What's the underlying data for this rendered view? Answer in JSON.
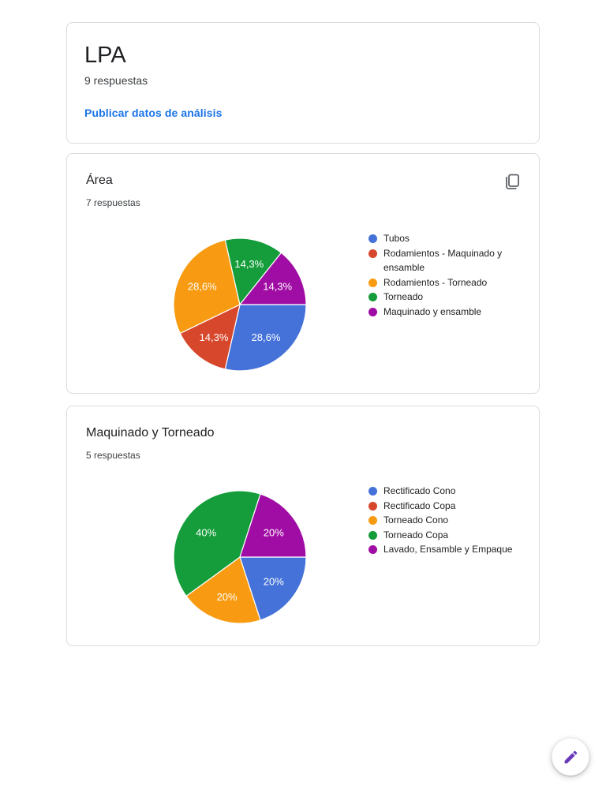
{
  "header_card": {
    "title": "LPA",
    "responses": "9 respuestas",
    "publish_link": "Publicar datos de análisis"
  },
  "colors": {
    "blue": "#4472d8",
    "red": "#d7472c",
    "orange": "#f89b12",
    "green": "#149d3a",
    "purple": "#a00da4",
    "link": "#1a73e8",
    "fab_pencil": "#673ab7",
    "icon_gray": "#5f6368",
    "card_border": "#dadce0"
  },
  "chart_data": [
    {
      "type": "pie",
      "title": "Área",
      "subtitle": "7 respuestas",
      "start_angle_deg": 90,
      "legend_position": "right",
      "has_copy_button": true,
      "slices": [
        {
          "label": "Tubos",
          "count": 2,
          "percent_label": "28,6%",
          "color": "#4472d8"
        },
        {
          "label": "Rodamientos - Maquinado y ensamble",
          "count": 1,
          "percent_label": "14,3%",
          "color": "#d7472c"
        },
        {
          "label": "Rodamientos - Torneado",
          "count": 2,
          "percent_label": "28,6%",
          "color": "#f89b12"
        },
        {
          "label": "Torneado",
          "count": 1,
          "percent_label": "14,3%",
          "color": "#149d3a"
        },
        {
          "label": "Maquinado y ensamble",
          "count": 1,
          "percent_label": "14,3%",
          "color": "#a00da4"
        }
      ]
    },
    {
      "type": "pie",
      "title": "Maquinado y Torneado",
      "subtitle": "5 respuestas",
      "start_angle_deg": 90,
      "legend_position": "right",
      "has_copy_button": false,
      "slices": [
        {
          "label": "Rectificado Cono",
          "count": 1,
          "percent_label": "20%",
          "color": "#4472d8"
        },
        {
          "label": "Rectificado Copa",
          "count": 0,
          "percent_label": "",
          "color": "#d7472c"
        },
        {
          "label": "Torneado Cono",
          "count": 1,
          "percent_label": "20%",
          "color": "#f89b12"
        },
        {
          "label": "Torneado Copa",
          "count": 2,
          "percent_label": "40%",
          "color": "#149d3a"
        },
        {
          "label": "Lavado, Ensamble y Empaque",
          "count": 1,
          "percent_label": "20%",
          "color": "#a00da4"
        }
      ]
    }
  ]
}
